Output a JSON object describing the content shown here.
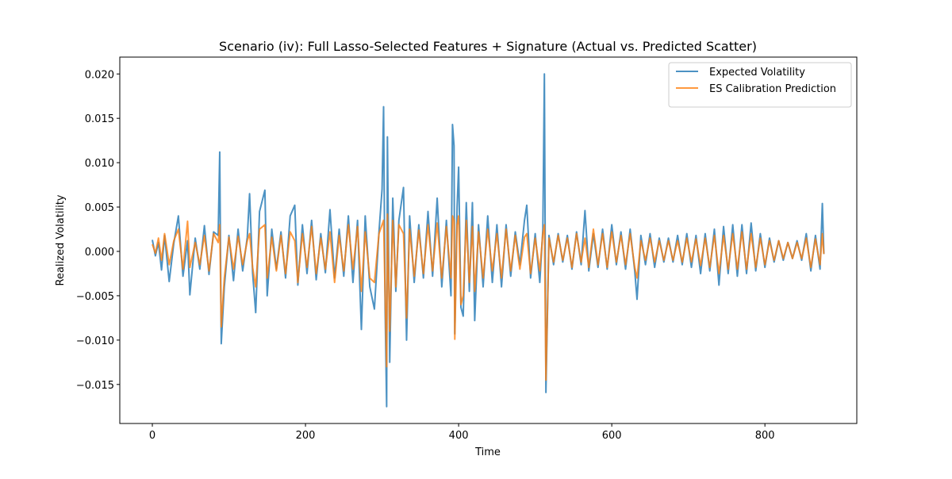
{
  "chart_data": {
    "type": "line",
    "title": "Scenario (iv): Full Lasso-Selected Features + Signature (Actual vs. Predicted Scatter)",
    "x_label": "Time",
    "y_label": "Realized Volatility",
    "xlim": [
      -42.5,
      920
    ],
    "ylim": [
      -0.0194,
      0.0219
    ],
    "xticks": [
      0,
      200,
      400,
      600,
      800
    ],
    "yticks": [
      {
        "value": -0.015,
        "label": "−0.015"
      },
      {
        "value": -0.01,
        "label": "−0.010"
      },
      {
        "value": -0.005,
        "label": "−0.005"
      },
      {
        "value": 0,
        "label": "0.000"
      },
      {
        "value": 0.005,
        "label": "0.005"
      },
      {
        "value": 0.01,
        "label": "0.010"
      },
      {
        "value": 0.015,
        "label": "0.015"
      },
      {
        "value": 0.02,
        "label": "0.020"
      }
    ],
    "legend": "upper right",
    "grid": false,
    "x": [
      0,
      4,
      8,
      12,
      16,
      22,
      28,
      34,
      40,
      46,
      49,
      56,
      62,
      68,
      74,
      80,
      86,
      88,
      90,
      94,
      100,
      106,
      112,
      118,
      124,
      127,
      131,
      135,
      140,
      147,
      150,
      156,
      162,
      168,
      174,
      180,
      186,
      190,
      196,
      202,
      208,
      214,
      220,
      226,
      232,
      238,
      244,
      250,
      256,
      262,
      268,
      273,
      278,
      284,
      290,
      296,
      300,
      302,
      304,
      306,
      307,
      310,
      314,
      318,
      322,
      328,
      332,
      336,
      342,
      348,
      354,
      360,
      366,
      372,
      378,
      384,
      390,
      392,
      394,
      395,
      398,
      400,
      403,
      406,
      410,
      414,
      418,
      421,
      426,
      432,
      438,
      444,
      450,
      456,
      462,
      468,
      474,
      480,
      486,
      489,
      494,
      500,
      506,
      510,
      512,
      514,
      518,
      524,
      530,
      536,
      542,
      548,
      554,
      560,
      565,
      570,
      576,
      582,
      588,
      594,
      600,
      606,
      612,
      618,
      624,
      630,
      633,
      638,
      644,
      650,
      656,
      662,
      668,
      674,
      680,
      686,
      692,
      698,
      704,
      710,
      716,
      722,
      728,
      734,
      740,
      746,
      752,
      758,
      764,
      770,
      776,
      782,
      788,
      794,
      800,
      806,
      812,
      818,
      824,
      830,
      836,
      842,
      848,
      854,
      860,
      866,
      872,
      875,
      877
    ],
    "series": [
      {
        "name": "Expected Volatility",
        "color": "#1f77b4",
        "values": [
          0.0013,
          -0.0005,
          0.001,
          -0.0021,
          0.0018,
          -0.0034,
          0.0009,
          0.004,
          -0.0028,
          0.0012,
          -0.0049,
          0.0015,
          -0.002,
          0.0029,
          -0.0026,
          0.0022,
          0.0018,
          0.0112,
          -0.0104,
          -0.004,
          0.0018,
          -0.0033,
          0.0025,
          -0.0022,
          0.0016,
          0.0065,
          -0.0025,
          -0.0069,
          0.0045,
          0.0069,
          -0.005,
          0.0025,
          -0.002,
          0.0022,
          -0.003,
          0.004,
          0.0052,
          -0.0038,
          0.003,
          -0.0025,
          0.0035,
          -0.0032,
          0.002,
          -0.0024,
          0.0047,
          -0.003,
          0.0025,
          -0.0028,
          0.004,
          -0.0035,
          0.0035,
          -0.0088,
          0.004,
          -0.004,
          -0.0065,
          0.0022,
          0.007,
          0.0163,
          -0.0065,
          -0.0175,
          0.0129,
          -0.0125,
          0.006,
          -0.0045,
          0.0035,
          0.0072,
          -0.01,
          0.004,
          -0.0035,
          0.003,
          -0.003,
          0.0045,
          -0.0028,
          0.006,
          -0.004,
          0.0035,
          -0.005,
          0.0143,
          0.0119,
          -0.0093,
          0.005,
          0.0095,
          -0.0063,
          -0.0073,
          0.0055,
          -0.0045,
          0.0055,
          -0.0078,
          0.003,
          -0.004,
          0.004,
          -0.0035,
          0.003,
          -0.004,
          0.003,
          -0.0028,
          0.0022,
          -0.0015,
          0.0035,
          0.0052,
          -0.003,
          0.002,
          -0.0035,
          0.0025,
          0.02,
          -0.0159,
          0.0018,
          -0.0015,
          0.002,
          -0.0012,
          0.0018,
          -0.002,
          0.0022,
          -0.0015,
          0.0046,
          -0.0022,
          0.002,
          -0.0018,
          0.0025,
          -0.002,
          0.003,
          -0.0015,
          0.0022,
          -0.002,
          0.0025,
          -0.0022,
          -0.0054,
          0.0018,
          -0.0015,
          0.002,
          -0.0018,
          0.0015,
          -0.0012,
          0.0015,
          -0.0012,
          0.0018,
          -0.0015,
          0.002,
          -0.0018,
          0.0018,
          -0.0025,
          0.002,
          -0.0022,
          0.0025,
          -0.0038,
          0.0028,
          -0.0025,
          0.003,
          -0.0028,
          0.003,
          -0.0025,
          0.0032,
          -0.0022,
          0.002,
          -0.0018,
          0.0015,
          -0.0012,
          0.0012,
          -0.001,
          0.001,
          -0.0008,
          0.0012,
          -0.001,
          0.002,
          -0.0022,
          0.0018,
          -0.002,
          0.0054,
          -0.0003
        ]
      },
      {
        "name": "ES Calibration Prediction",
        "color": "#ff7f0e",
        "values": [
          0.0008,
          -0.0002,
          0.0015,
          -0.001,
          0.002,
          -0.0015,
          0.0012,
          0.0025,
          -0.002,
          0.0034,
          -0.0018,
          0.001,
          -0.0015,
          0.0018,
          -0.0022,
          0.002,
          0.001,
          0.003,
          -0.0085,
          -0.003,
          0.0016,
          -0.002,
          0.0017,
          -0.0015,
          0.0012,
          0.002,
          -0.0018,
          -0.004,
          0.0025,
          0.003,
          -0.003,
          0.0016,
          -0.0022,
          0.0018,
          -0.0025,
          0.0022,
          0.0012,
          -0.0035,
          0.002,
          -0.0018,
          0.0028,
          -0.0025,
          0.0015,
          -0.002,
          0.0022,
          -0.0035,
          0.0018,
          -0.0022,
          0.003,
          -0.002,
          0.0028,
          -0.0045,
          0.0022,
          -0.003,
          -0.0035,
          0.002,
          0.003,
          0.0035,
          -0.005,
          -0.013,
          0.0042,
          -0.009,
          0.0035,
          -0.004,
          0.003,
          0.002,
          -0.0075,
          0.0025,
          -0.0028,
          0.0024,
          -0.0025,
          0.003,
          -0.0022,
          0.0032,
          -0.003,
          0.0028,
          -0.003,
          0.004,
          0.0035,
          -0.0099,
          0.003,
          0.004,
          -0.006,
          -0.005,
          0.0035,
          -0.0035,
          0.0028,
          -0.0045,
          0.0022,
          -0.003,
          0.0025,
          -0.0022,
          0.002,
          -0.003,
          0.0025,
          -0.0022,
          0.0018,
          -0.002,
          0.0016,
          0.002,
          -0.0025,
          0.0015,
          -0.0022,
          0.002,
          0.003,
          -0.0145,
          0.0015,
          -0.0012,
          0.0018,
          -0.001,
          0.0015,
          -0.0018,
          0.002,
          -0.0012,
          0.0015,
          -0.0018,
          0.0025,
          -0.0015,
          0.002,
          -0.0018,
          0.0022,
          -0.0012,
          0.0018,
          -0.0015,
          0.002,
          -0.0018,
          -0.003,
          0.0012,
          -0.001,
          0.0015,
          -0.0012,
          0.0012,
          -0.001,
          0.0012,
          -0.001,
          0.0012,
          -0.0012,
          0.0015,
          -0.0012,
          0.0014,
          -0.0016,
          0.0015,
          -0.0018,
          0.0018,
          -0.0025,
          0.0018,
          -0.002,
          0.002,
          -0.002,
          0.0022,
          -0.002,
          0.002,
          -0.0018,
          0.0015,
          -0.0015,
          0.0012,
          -0.001,
          0.0012,
          -0.0008,
          0.001,
          -0.0008,
          0.001,
          -0.0008,
          0.0015,
          -0.0018,
          0.0014,
          -0.0015,
          0.002,
          -0.0003
        ]
      }
    ]
  }
}
